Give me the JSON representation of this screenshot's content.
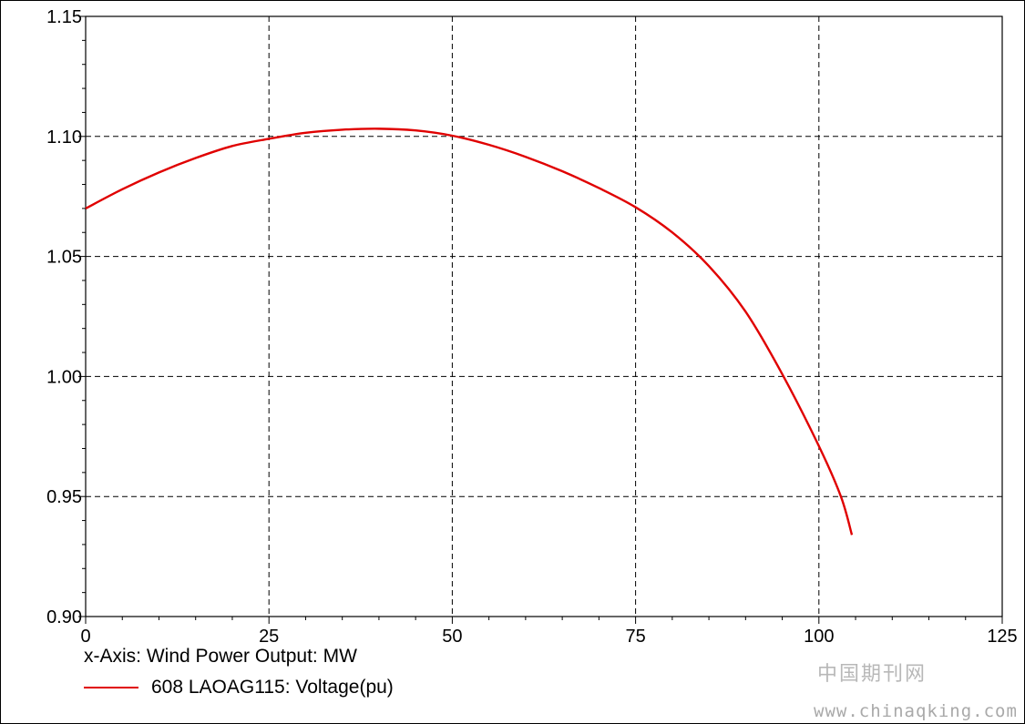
{
  "chart_data": {
    "type": "line",
    "x_axis_caption": "x-Axis: Wind Power Output: MW",
    "xlim": [
      0,
      125
    ],
    "ylim": [
      0.9,
      1.15
    ],
    "x_ticks": [
      "0",
      "25",
      "50",
      "75",
      "100",
      "125"
    ],
    "y_ticks": [
      "0.90",
      "0.95",
      "1.00",
      "1.05",
      "1.10",
      "1.15"
    ],
    "grid": true,
    "legend": "bottom-left",
    "series": [
      {
        "name": "608 LAOAG115: Voltage(pu)",
        "color": "#e00000",
        "x": [
          0,
          5,
          10,
          15,
          20,
          25,
          30,
          35,
          40,
          45,
          50,
          55,
          60,
          65,
          70,
          75,
          80,
          85,
          90,
          95,
          100,
          103,
          104.5
        ],
        "y": [
          1.07,
          1.078,
          1.085,
          1.091,
          1.096,
          1.099,
          1.1015,
          1.1028,
          1.1032,
          1.1025,
          1.1003,
          1.0965,
          1.0915,
          1.0855,
          1.0785,
          1.0705,
          1.06,
          1.046,
          1.027,
          1.001,
          0.971,
          0.95,
          0.934
        ]
      }
    ]
  },
  "watermark": {
    "cn": "中国期刊网",
    "url": "www.chinaqking.com"
  }
}
